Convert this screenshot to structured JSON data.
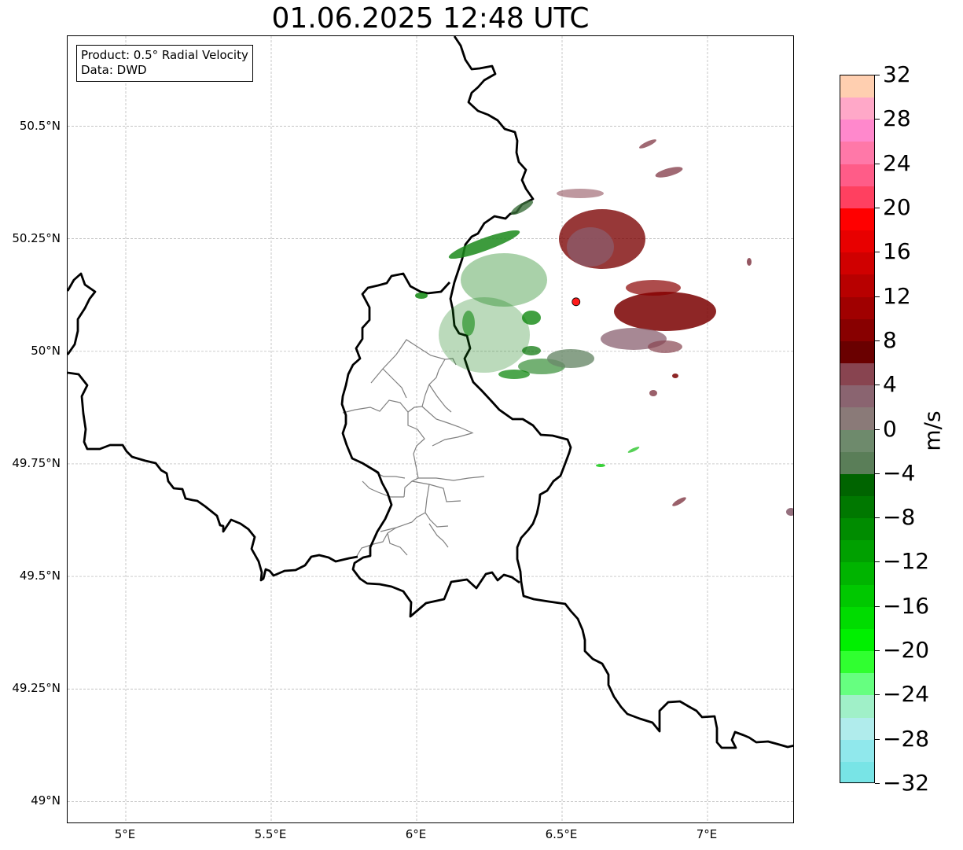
{
  "title": "01.06.2025 12:48 UTC",
  "info_box": {
    "product_line": "Product: 0.5° Radial Velocity",
    "source_line": "Data: DWD"
  },
  "map": {
    "projection": "lat/lon",
    "lon_range": [
      4.8,
      7.3
    ],
    "lat_range": [
      48.95,
      50.7
    ],
    "gridlines": true,
    "lat_ticks": [
      {
        "value": 50.5,
        "label": "50.5°N"
      },
      {
        "value": 50.25,
        "label": "50.25°N"
      },
      {
        "value": 50.0,
        "label": "50°N"
      },
      {
        "value": 49.75,
        "label": "49.75°N"
      },
      {
        "value": 49.5,
        "label": "49.5°N"
      },
      {
        "value": 49.25,
        "label": "49.25°N"
      },
      {
        "value": 49.0,
        "label": "49°N"
      }
    ],
    "lon_ticks": [
      {
        "value": 5.0,
        "label": "5°E"
      },
      {
        "value": 5.5,
        "label": "5.5°E"
      },
      {
        "value": 6.0,
        "label": "6°E"
      },
      {
        "value": 6.5,
        "label": "6.5°E"
      },
      {
        "value": 7.0,
        "label": "7°E"
      }
    ],
    "radar_site": {
      "lon": 6.548,
      "lat": 50.11,
      "marker_color": "#ff1a1a"
    },
    "colors": {
      "border": "#000000",
      "district_lines": "#808080",
      "grid": "#b0b0b0"
    }
  },
  "colorbar": {
    "unit": "m/s",
    "min": -32,
    "max": 32,
    "tick_labels": [
      {
        "value": 32,
        "label": "32"
      },
      {
        "value": 28,
        "label": "28"
      },
      {
        "value": 24,
        "label": "24"
      },
      {
        "value": 20,
        "label": "20"
      },
      {
        "value": 16,
        "label": "16"
      },
      {
        "value": 12,
        "label": "12"
      },
      {
        "value": 8,
        "label": "8"
      },
      {
        "value": 4,
        "label": "4"
      },
      {
        "value": 0,
        "label": "0"
      },
      {
        "value": -4,
        "label": "−4"
      },
      {
        "value": -8,
        "label": "−8"
      },
      {
        "value": -12,
        "label": "−12"
      },
      {
        "value": -16,
        "label": "−16"
      },
      {
        "value": -20,
        "label": "−20"
      },
      {
        "value": -24,
        "label": "−24"
      },
      {
        "value": -28,
        "label": "−28"
      },
      {
        "value": -32,
        "label": "−32"
      }
    ],
    "bins": [
      {
        "from": 30,
        "to": 32,
        "color": "#ffcfb0"
      },
      {
        "from": 28,
        "to": 30,
        "color": "#ffa8c8"
      },
      {
        "from": 26,
        "to": 28,
        "color": "#ff88cc"
      },
      {
        "from": 24,
        "to": 26,
        "color": "#ff78a8"
      },
      {
        "from": 22,
        "to": 24,
        "color": "#ff5c88"
      },
      {
        "from": 20,
        "to": 22,
        "color": "#ff4060"
      },
      {
        "from": 18,
        "to": 20,
        "color": "#ff0000"
      },
      {
        "from": 16,
        "to": 18,
        "color": "#e80000"
      },
      {
        "from": 14,
        "to": 16,
        "color": "#d00000"
      },
      {
        "from": 12,
        "to": 14,
        "color": "#b80000"
      },
      {
        "from": 10,
        "to": 12,
        "color": "#a00000"
      },
      {
        "from": 8,
        "to": 10,
        "color": "#880000"
      },
      {
        "from": 6,
        "to": 8,
        "color": "#6a0000"
      },
      {
        "from": 4,
        "to": 6,
        "color": "#884450"
      },
      {
        "from": 2,
        "to": 4,
        "color": "#8a6470"
      },
      {
        "from": 0,
        "to": 2,
        "color": "#8a7a78"
      },
      {
        "from": -2,
        "to": 0,
        "color": "#6e8a6c"
      },
      {
        "from": -4,
        "to": -2,
        "color": "#5a7e58"
      },
      {
        "from": -6,
        "to": -4,
        "color": "#006400"
      },
      {
        "from": -8,
        "to": -6,
        "color": "#007800"
      },
      {
        "from": -10,
        "to": -8,
        "color": "#008c00"
      },
      {
        "from": -12,
        "to": -10,
        "color": "#00a000"
      },
      {
        "from": -14,
        "to": -12,
        "color": "#00b400"
      },
      {
        "from": -16,
        "to": -14,
        "color": "#00c800"
      },
      {
        "from": -18,
        "to": -16,
        "color": "#00dc00"
      },
      {
        "from": -20,
        "to": -18,
        "color": "#00f000"
      },
      {
        "from": -22,
        "to": -20,
        "color": "#30ff30"
      },
      {
        "from": -24,
        "to": -22,
        "color": "#66ff80"
      },
      {
        "from": -26,
        "to": -24,
        "color": "#a0f0c8"
      },
      {
        "from": -28,
        "to": -26,
        "color": "#b0ecec"
      },
      {
        "from": -30,
        "to": -28,
        "color": "#90e8ec"
      },
      {
        "from": -32,
        "to": -30,
        "color": "#78e4e6"
      }
    ]
  }
}
